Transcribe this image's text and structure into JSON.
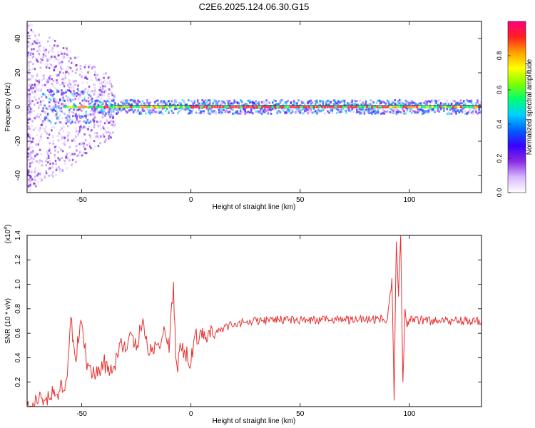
{
  "title": "C2E6.2025.124.06.30.G15",
  "chart_data": [
    {
      "type": "heatmap",
      "name": "spectrogram",
      "xlabel": "Height of straight line (km)",
      "ylabel": "Frequency (Hz)",
      "xlim": [
        -75,
        133
      ],
      "ylim": [
        -50,
        50
      ],
      "xticks": [
        "-50",
        "0",
        "50",
        "100"
      ],
      "xtick_values": [
        -50,
        0,
        50,
        100
      ],
      "yticks": [
        "-40",
        "-20",
        "0",
        "20",
        "40"
      ],
      "ytick_values": [
        -40,
        -20,
        0,
        20,
        40
      ],
      "colorbar": {
        "label": "Normalized spectral amplitude",
        "range": [
          0,
          1
        ],
        "ticks": [
          "0.0",
          "0.2",
          "0.4",
          "0.6",
          "0.8"
        ],
        "tick_values": [
          0.0,
          0.2,
          0.4,
          0.6,
          0.8
        ],
        "colormap": [
          "#ffffff",
          "#d8b8ff",
          "#8a2be2",
          "#3a00ff",
          "#0060ff",
          "#00d0ff",
          "#00ff70",
          "#80ff00",
          "#ffff00",
          "#ffa000",
          "#ff2020",
          "#ff0080"
        ]
      },
      "line_center_hz": 0,
      "grid": false
    },
    {
      "type": "line",
      "name": "snr",
      "xlabel": "Height of straight line (km)",
      "ylabel": "SNR (10 * v/v)",
      "scale_label": "(x10",
      "scale_exp": "4",
      "scale_close": ")",
      "xlim": [
        -75,
        133
      ],
      "ylim": [
        0,
        14000
      ],
      "xticks": [
        "-50",
        "0",
        "50",
        "100"
      ],
      "xtick_values": [
        -50,
        0,
        50,
        100
      ],
      "yticks": [
        "0.2",
        "0.4",
        "0.6",
        "0.8",
        "1.0",
        "1.2",
        "1.4"
      ],
      "ytick_values": [
        2000,
        4000,
        6000,
        8000,
        10000,
        12000,
        14000
      ],
      "color": "#e83030",
      "x": [
        -75,
        -70,
        -65,
        -60,
        -57,
        -55,
        -53,
        -50,
        -48,
        -45,
        -42,
        -40,
        -37,
        -35,
        -32,
        -30,
        -28,
        -25,
        -22,
        -20,
        -18,
        -15,
        -12,
        -10,
        -8,
        -7,
        -6,
        -5,
        -3,
        0,
        2,
        5,
        8,
        10,
        15,
        20,
        25,
        30,
        40,
        50,
        60,
        70,
        80,
        90,
        92,
        93,
        94,
        95,
        96,
        97,
        98,
        99,
        100,
        105,
        110,
        120,
        133
      ],
      "y": [
        50,
        300,
        700,
        1300,
        2200,
        7300,
        4000,
        6800,
        3800,
        2600,
        3000,
        3600,
        2900,
        3300,
        5600,
        4500,
        6000,
        4600,
        7200,
        5000,
        4500,
        5200,
        6300,
        4400,
        10200,
        4000,
        2800,
        5200,
        4600,
        3500,
        6000,
        5600,
        6200,
        5800,
        6400,
        6800,
        6900,
        7000,
        7100,
        7100,
        7100,
        7100,
        7100,
        7200,
        10500,
        500,
        13500,
        9000,
        14000,
        2000,
        8000,
        6500,
        7200,
        7100,
        7000,
        7000,
        7000
      ]
    }
  ]
}
